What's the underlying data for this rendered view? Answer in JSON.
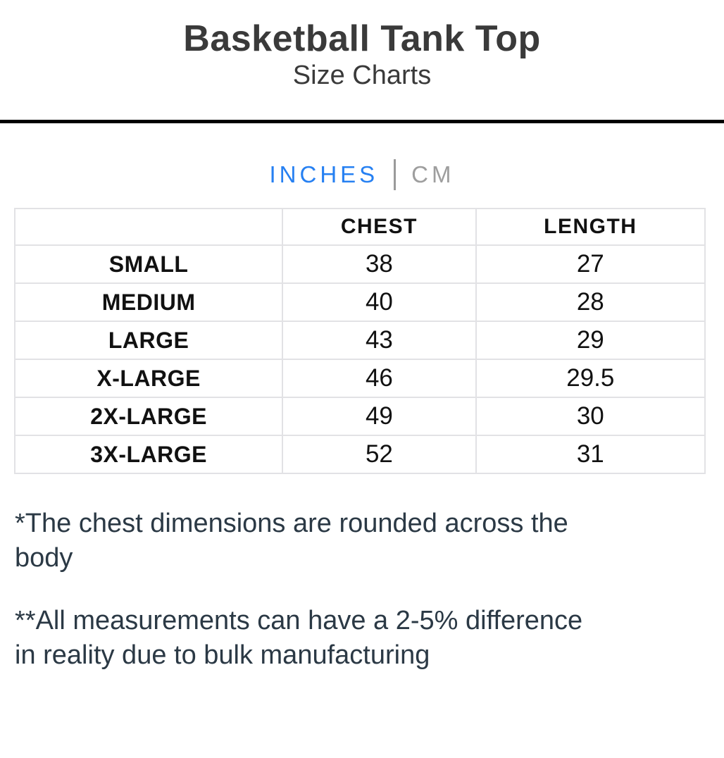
{
  "header": {
    "title": "Basketball Tank Top",
    "subtitle": "Size Charts"
  },
  "unit_tabs": {
    "inches_label": "INCHES",
    "cm_label": "CM",
    "active_tab": "INCHES",
    "active_color": "#2680f2",
    "inactive_color": "#9e9e9e"
  },
  "chart_data": {
    "type": "table",
    "title": "Basketball Tank Top Size Charts",
    "unit": "INCHES",
    "columns": [
      "",
      "CHEST",
      "LENGTH"
    ],
    "rows": [
      {
        "size": "SMALL",
        "chest": "38",
        "length": "27"
      },
      {
        "size": "MEDIUM",
        "chest": "40",
        "length": "28"
      },
      {
        "size": "LARGE",
        "chest": "43",
        "length": "29"
      },
      {
        "size": "X-LARGE",
        "chest": "46",
        "length": "29.5"
      },
      {
        "size": "2X-LARGE",
        "chest": "49",
        "length": "30"
      },
      {
        "size": "3X-LARGE",
        "chest": "52",
        "length": "31"
      }
    ]
  },
  "notes": {
    "note1": "*The chest dimensions are rounded across the body",
    "note2": "**All measurements can have a 2-5% difference in reality due to bulk manufacturing"
  }
}
